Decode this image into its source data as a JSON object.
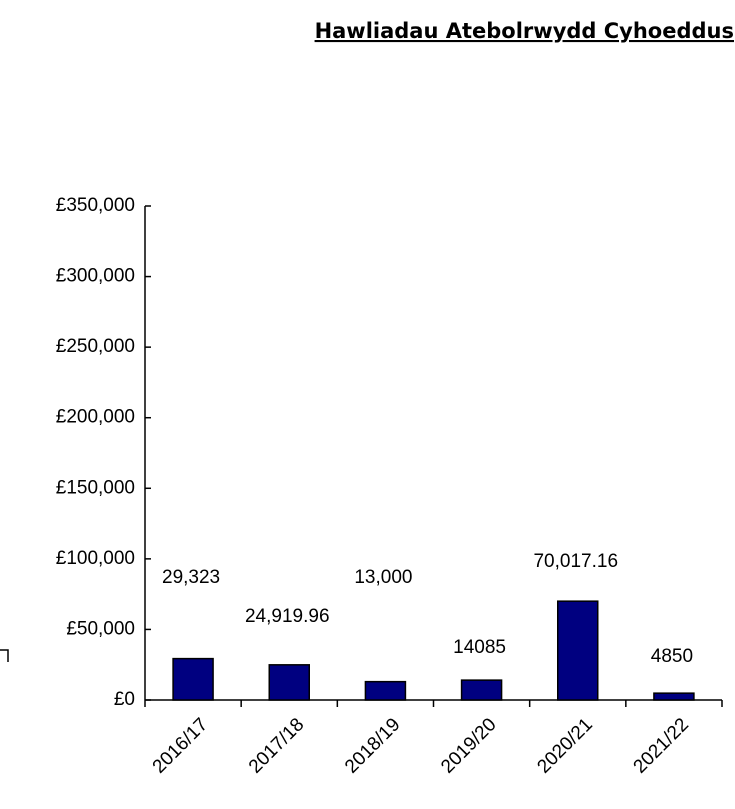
{
  "chart_data": {
    "type": "bar",
    "title": "Hawliadau Atebolrwydd Cyhoeddus",
    "categories": [
      "2016/17",
      "2017/18",
      "2018/19",
      "2019/20",
      "2020/21",
      "2021/22"
    ],
    "values": [
      29323,
      24919.96,
      13000,
      14085,
      70017.16,
      4850
    ],
    "value_labels": [
      "29,323",
      "24,919.96",
      "13,000",
      "14085",
      "70,017.16",
      "4850"
    ],
    "color": "#000080",
    "ylim": [
      0,
      350000
    ],
    "yticks": [
      {
        "value": 0,
        "label": "£0"
      },
      {
        "value": 50000,
        "label": "£50,000"
      },
      {
        "value": 100000,
        "label": "£100,000"
      },
      {
        "value": 150000,
        "label": "£150,000"
      },
      {
        "value": 200000,
        "label": "£200,000"
      },
      {
        "value": 250000,
        "label": "£250,000"
      },
      {
        "value": 300000,
        "label": "£300,000"
      },
      {
        "value": 350000,
        "label": "£350,000"
      }
    ],
    "grid": false
  }
}
